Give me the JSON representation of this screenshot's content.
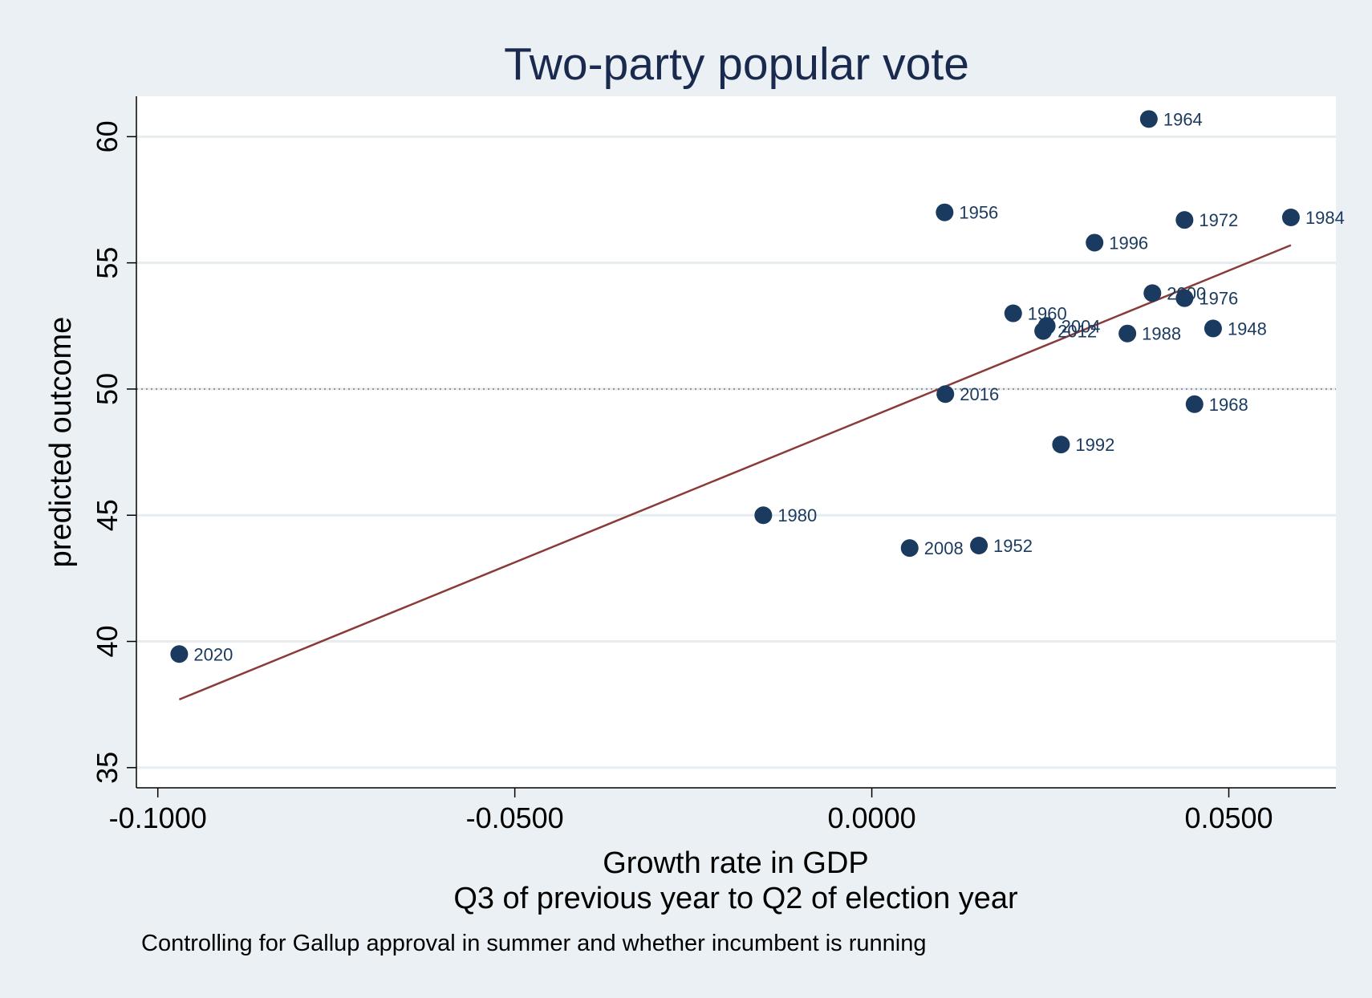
{
  "chart_data": {
    "type": "scatter",
    "title": "Two-party popular vote",
    "xlabel": "Growth rate in GDP",
    "xlabel_line2": "Q3 of previous year to Q2 of election year",
    "ylabel": "predicted outcome",
    "note": "Controlling for Gallup approval in summer and whether incumbent is running",
    "xlim": [
      -0.103,
      0.065
    ],
    "ylim": [
      34.2,
      61.6
    ],
    "x_ticks": [
      -0.1,
      -0.05,
      0.0,
      0.05
    ],
    "x_tick_labels": [
      "-0.1000",
      "-0.0500",
      "0.0000",
      "0.0500"
    ],
    "y_ticks": [
      35,
      40,
      45,
      50,
      55,
      60
    ],
    "y_tick_labels": [
      "35",
      "40",
      "45",
      "50",
      "55",
      "60"
    ],
    "reference_line_y": 50,
    "grid": "horizontal",
    "points": [
      {
        "label": "2020",
        "x": -0.097,
        "y": 39.5
      },
      {
        "label": "1980",
        "x": -0.0152,
        "y": 45.0
      },
      {
        "label": "2008",
        "x": 0.0053,
        "y": 43.7
      },
      {
        "label": "1952",
        "x": 0.015,
        "y": 43.8
      },
      {
        "label": "2016",
        "x": 0.0103,
        "y": 49.8
      },
      {
        "label": "1956",
        "x": 0.0102,
        "y": 57.0
      },
      {
        "label": "1960",
        "x": 0.0198,
        "y": 53.0
      },
      {
        "label": "2004",
        "x": 0.0245,
        "y": 52.5
      },
      {
        "label": "2012",
        "x": 0.024,
        "y": 52.3
      },
      {
        "label": "1992",
        "x": 0.0265,
        "y": 47.8
      },
      {
        "label": "1996",
        "x": 0.0312,
        "y": 55.8
      },
      {
        "label": "1988",
        "x": 0.0358,
        "y": 52.2
      },
      {
        "label": "1964",
        "x": 0.0388,
        "y": 60.7
      },
      {
        "label": "2000",
        "x": 0.0393,
        "y": 53.8
      },
      {
        "label": "1976",
        "x": 0.0438,
        "y": 53.6
      },
      {
        "label": "1972",
        "x": 0.0438,
        "y": 56.7
      },
      {
        "label": "1968",
        "x": 0.0452,
        "y": 49.4
      },
      {
        "label": "1948",
        "x": 0.0478,
        "y": 52.4
      },
      {
        "label": "1984",
        "x": 0.0587,
        "y": 56.8
      }
    ],
    "fit_line": {
      "x": [
        -0.097,
        0.0587
      ],
      "y": [
        37.7,
        55.7
      ]
    },
    "colors": {
      "background": "#eaf0f3",
      "plot_area": "#ffffff",
      "gridline": "#e6ecef",
      "marker": "#1a3a5f",
      "fit_line": "#8b3a3a",
      "title": "#1a2a4f"
    }
  }
}
